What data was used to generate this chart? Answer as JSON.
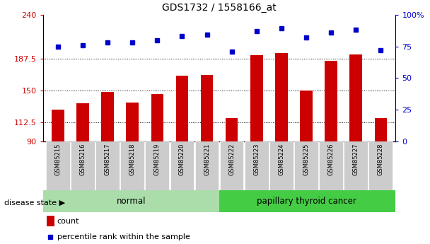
{
  "title": "GDS1732 / 1558166_at",
  "categories": [
    "GSM85215",
    "GSM85216",
    "GSM85217",
    "GSM85218",
    "GSM85219",
    "GSM85220",
    "GSM85221",
    "GSM85222",
    "GSM85223",
    "GSM85224",
    "GSM85225",
    "GSM85226",
    "GSM85227",
    "GSM85228"
  ],
  "counts": [
    128,
    135,
    149,
    136,
    146,
    168,
    169,
    118,
    192,
    195,
    150,
    185,
    193,
    118
  ],
  "percentiles": [
    75,
    76,
    78,
    78,
    80,
    83,
    84,
    71,
    87,
    89,
    82,
    86,
    88,
    72
  ],
  "group_labels": [
    "normal",
    "papillary thyroid cancer"
  ],
  "group_sizes": [
    7,
    7
  ],
  "ylim_left": [
    90,
    240
  ],
  "ylim_right": [
    0,
    100
  ],
  "yticks_left": [
    90,
    112.5,
    150,
    187.5,
    240
  ],
  "yticks_right": [
    0,
    25,
    50,
    75,
    100
  ],
  "left_tick_color": "#cc0000",
  "right_tick_color": "#0000cc",
  "bar_color": "#cc0000",
  "dot_color": "#0000cc",
  "normal_bg": "#aaddaa",
  "cancer_bg": "#44cc44",
  "label_bg": "#cccccc",
  "legend_count_label": "count",
  "legend_pct_label": "percentile rank within the sample",
  "disease_state_label": "disease state"
}
